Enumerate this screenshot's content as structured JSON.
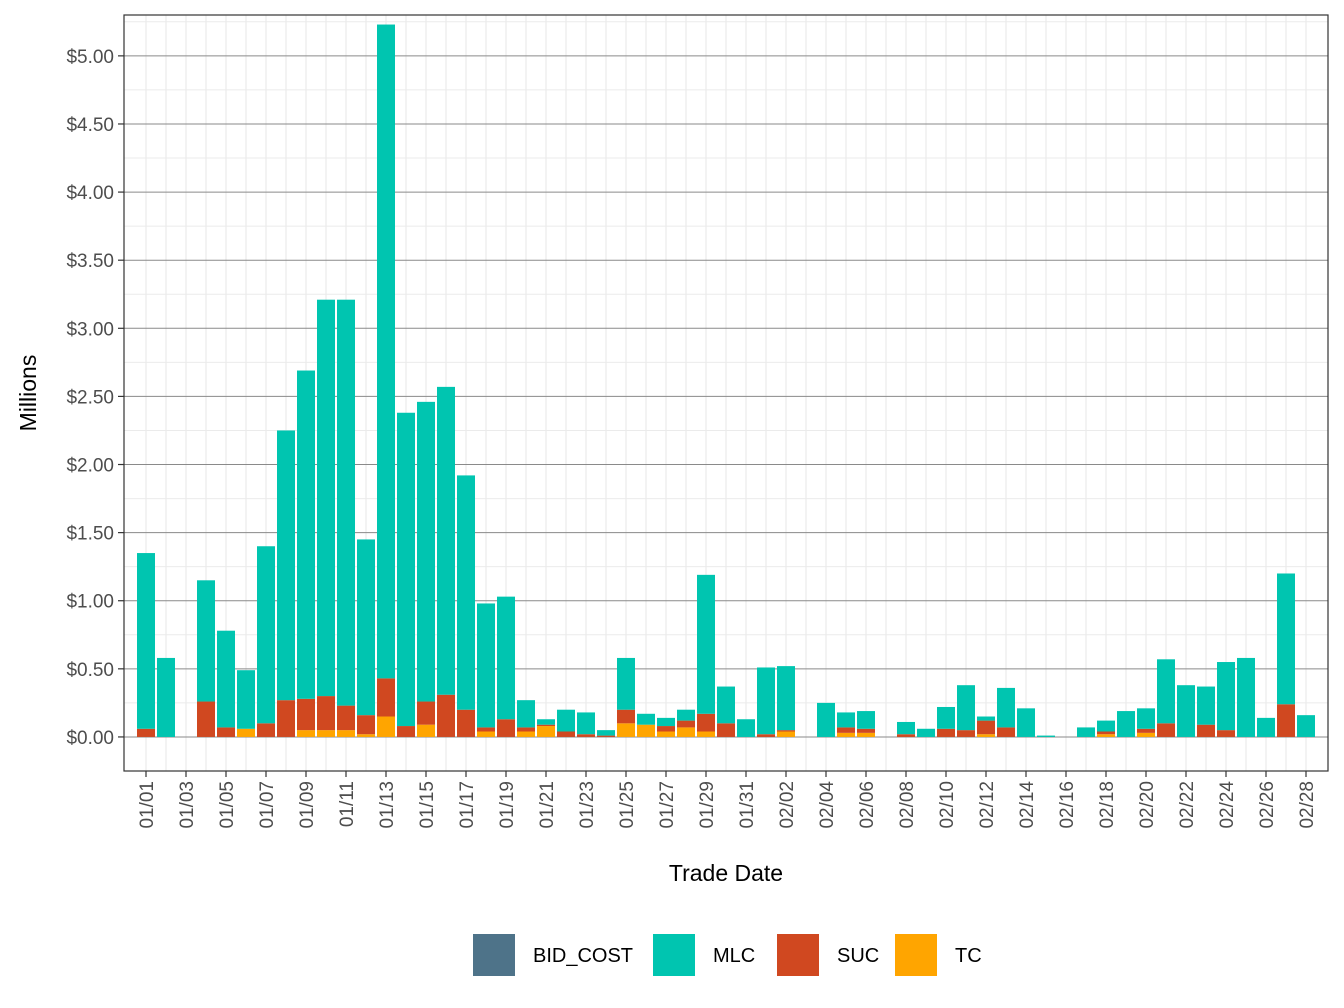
{
  "chart_data": {
    "type": "bar",
    "stacked": true,
    "xlabel": "Trade Date",
    "ylabel": "Millions",
    "ylim": [
      -0.25,
      5.3
    ],
    "yticks": [
      0,
      0.5,
      1,
      1.5,
      2,
      2.5,
      3,
      3.5,
      4,
      4.5,
      5
    ],
    "ytick_labels": [
      "$0.00",
      "$0.50",
      "$1.00",
      "$1.50",
      "$2.00",
      "$2.50",
      "$3.00",
      "$3.50",
      "$4.00",
      "$4.50",
      "$5.00"
    ],
    "grid": true,
    "legend_position": "bottom",
    "categories": [
      "01/01",
      "01/02",
      "01/03",
      "01/04",
      "01/05",
      "01/06",
      "01/07",
      "01/08",
      "01/09",
      "01/10",
      "01/11",
      "01/12",
      "01/13",
      "01/14",
      "01/15",
      "01/16",
      "01/17",
      "01/18",
      "01/19",
      "01/20",
      "01/21",
      "01/22",
      "01/23",
      "01/24",
      "01/25",
      "01/26",
      "01/27",
      "01/28",
      "01/29",
      "01/30",
      "01/31",
      "02/01",
      "02/02",
      "02/03",
      "02/04",
      "02/05",
      "02/06",
      "02/07",
      "02/08",
      "02/09",
      "02/10",
      "02/11",
      "02/12",
      "02/13",
      "02/14",
      "02/15",
      "02/16",
      "02/17",
      "02/18",
      "02/19",
      "02/20",
      "02/21",
      "02/22",
      "02/23",
      "02/24",
      "02/25",
      "02/26",
      "02/27",
      "02/28"
    ],
    "xtick_labels": [
      "01/01",
      "01/03",
      "01/05",
      "01/07",
      "01/09",
      "01/11",
      "01/13",
      "01/15",
      "01/17",
      "01/19",
      "01/21",
      "01/23",
      "01/25",
      "01/27",
      "01/29",
      "01/31",
      "02/02",
      "02/04",
      "02/06",
      "02/08",
      "02/10",
      "02/12",
      "02/14",
      "02/16",
      "02/18",
      "02/20",
      "02/22",
      "02/24",
      "02/26",
      "02/28"
    ],
    "series": [
      {
        "name": "TC",
        "color": "#FFA500",
        "values": [
          0,
          0,
          0,
          0,
          0,
          0.06,
          0,
          0,
          0.05,
          0.05,
          0.05,
          0.02,
          0.15,
          0,
          0.09,
          0,
          0,
          0.04,
          0,
          0.04,
          0.08,
          0,
          0,
          0,
          0.1,
          0.09,
          0.04,
          0.07,
          0.04,
          0,
          0,
          0,
          0.04,
          0,
          0,
          0.03,
          0.03,
          0,
          0,
          0,
          0,
          0,
          0.02,
          0,
          0,
          0,
          0,
          0,
          0.02,
          0,
          0.03,
          0,
          0,
          0,
          0,
          0,
          0,
          0,
          0
        ]
      },
      {
        "name": "SUC",
        "color": "#D04820",
        "values": [
          0.06,
          0,
          0,
          0.26,
          0.07,
          0,
          0.1,
          0.27,
          0.23,
          0.25,
          0.18,
          0.14,
          0.28,
          0.08,
          0.17,
          0.31,
          0.2,
          0.03,
          0.13,
          0.03,
          0.01,
          0.04,
          0.02,
          0.01,
          0.1,
          0,
          0.04,
          0.05,
          0.13,
          0.1,
          0,
          0.02,
          0.01,
          0,
          0,
          0.04,
          0.03,
          0,
          0.02,
          0,
          0.06,
          0.05,
          0.1,
          0.07,
          0,
          0,
          0,
          0,
          0.02,
          0,
          0.03,
          0.1,
          0,
          0.09,
          0.05,
          0,
          0,
          0.24,
          0
        ]
      },
      {
        "name": "MLC",
        "color": "#00C5B0",
        "values": [
          1.29,
          0.58,
          0,
          0.89,
          0.71,
          0.43,
          1.3,
          1.98,
          2.41,
          2.91,
          2.98,
          1.29,
          4.8,
          2.3,
          2.2,
          2.26,
          1.72,
          0.91,
          0.9,
          0.2,
          0.04,
          0.16,
          0.16,
          0.04,
          0.38,
          0.08,
          0.06,
          0.08,
          1.02,
          0.27,
          0.13,
          0.49,
          0.47,
          0,
          0.25,
          0.11,
          0.13,
          0,
          0.09,
          0.06,
          0.16,
          0.33,
          0.03,
          0.29,
          0.21,
          0.01,
          0,
          0.07,
          0.08,
          0.19,
          0.15,
          0.47,
          0.38,
          0.28,
          0.5,
          0.58,
          0.14,
          0.96,
          0.16
        ]
      },
      {
        "name": "BID_COST",
        "color": "#4E7389",
        "values": [
          0,
          0,
          0,
          0,
          0,
          0,
          0,
          0,
          0,
          0,
          0,
          0,
          0,
          0,
          0,
          0,
          0,
          0,
          0,
          0,
          0,
          0,
          0,
          0,
          0,
          0,
          0,
          0,
          0,
          0,
          0,
          0,
          0,
          0,
          0,
          0,
          0,
          0,
          0,
          0,
          0,
          0,
          0,
          0,
          0,
          0,
          0,
          0,
          0,
          0,
          0,
          0,
          0,
          0,
          0,
          0,
          0,
          0,
          0
        ]
      }
    ],
    "legend": [
      {
        "name": "BID_COST",
        "color": "#4E7389"
      },
      {
        "name": "MLC",
        "color": "#00C5B0"
      },
      {
        "name": "SUC",
        "color": "#D04820"
      },
      {
        "name": "TC",
        "color": "#FFA500"
      }
    ]
  }
}
